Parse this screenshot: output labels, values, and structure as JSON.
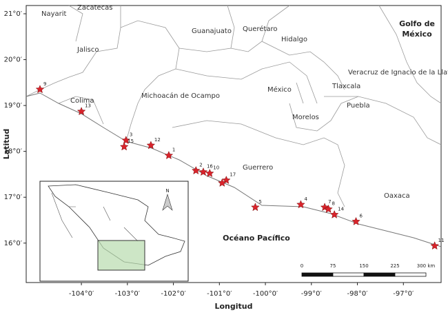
{
  "map": {
    "axes": {
      "x_label": "Longitud",
      "y_label": "Latitud",
      "xlim": [
        -105.2,
        -96.18
      ],
      "ylim": [
        15.14,
        21.18
      ],
      "xticks": [
        {
          "value": -104,
          "label": "-104°0′"
        },
        {
          "value": -103,
          "label": "-103°0′"
        },
        {
          "value": -102,
          "label": "-102°0′"
        },
        {
          "value": -101,
          "label": "-101°0′"
        },
        {
          "value": -100,
          "label": "-100°0′"
        },
        {
          "value": -99,
          "label": "-99°0′"
        },
        {
          "value": -98,
          "label": "-98°0′"
        },
        {
          "value": -97,
          "label": "-97°0′"
        }
      ],
      "yticks": [
        {
          "value": 16,
          "label": "16°0′"
        },
        {
          "value": 17,
          "label": "17°0′"
        },
        {
          "value": 18,
          "label": "18°0′"
        },
        {
          "value": 19,
          "label": "19°0′"
        },
        {
          "value": 20,
          "label": "20°0′"
        },
        {
          "value": 21,
          "label": "21°0′"
        }
      ]
    },
    "regions": [
      "Nayarit",
      "Zacatecas",
      "Guanajuato",
      "Querétaro",
      "Hidalgo",
      "Jalisco",
      "Veracruz de Ignacio de la Llave",
      "Colima",
      "Michoacán de Ocampo",
      "México",
      "Tlaxcala",
      "Puebla",
      "Morelos",
      "Guerrero",
      "Oaxaca"
    ],
    "seas": {
      "gulf": [
        "Golfo de",
        "México"
      ],
      "pacific": "Océano Pacífico"
    },
    "sites": {
      "color": "#d9232b",
      "labels": [
        "9",
        "13",
        "3",
        "15",
        "12",
        "1",
        "2",
        "16",
        "10",
        "17",
        null,
        "5",
        "4",
        "7",
        "8",
        "14",
        "6",
        "11"
      ],
      "lon": [
        -104.9,
        -104.0,
        -103.03,
        -103.07,
        -102.49,
        -102.1,
        -101.51,
        -101.35,
        -101.21,
        -100.85,
        -100.94,
        -100.22,
        -99.23,
        -98.71,
        -98.63,
        -98.5,
        -98.03,
        -96.32
      ],
      "lat": [
        19.35,
        18.87,
        18.24,
        18.1,
        18.13,
        17.91,
        17.58,
        17.55,
        17.52,
        17.37,
        17.31,
        16.78,
        16.84,
        16.78,
        16.74,
        16.62,
        16.47,
        15.94
      ]
    },
    "scale_bar": {
      "ticks": [
        0,
        75,
        150,
        225,
        {
          "value": 300,
          "label": "300 km"
        }
      ]
    },
    "north": "N"
  }
}
